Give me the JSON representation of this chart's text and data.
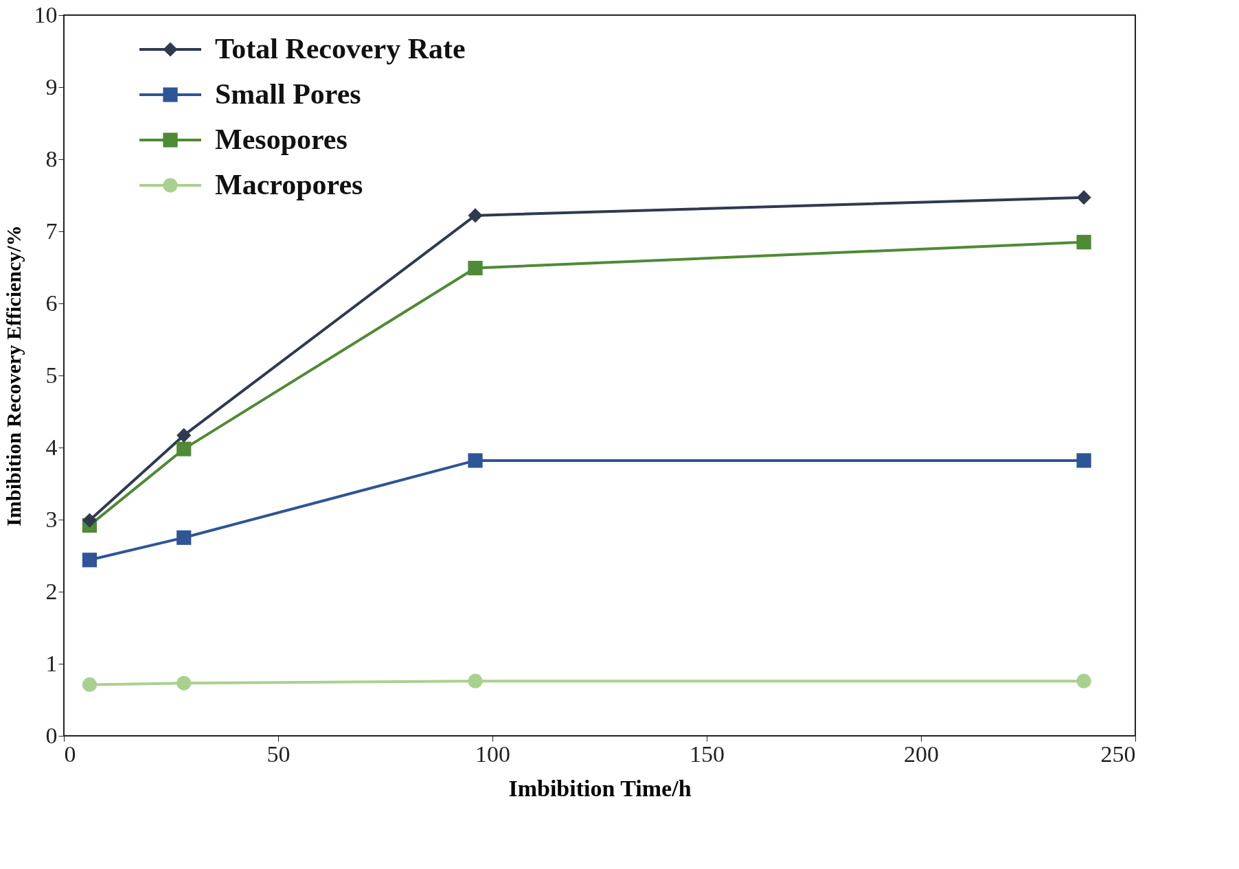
{
  "chart_data": {
    "type": "line",
    "xlabel": "Imbibition Time/h",
    "ylabel": "Imbibition Recovery Efficiency/%",
    "x": [
      6,
      28,
      96,
      238
    ],
    "series": [
      {
        "name": "Total Recovery Rate",
        "color": "#2f3a4f",
        "marker": "diamond",
        "values": [
          2.99,
          4.17,
          7.22,
          7.47
        ]
      },
      {
        "name": "Small Pores",
        "color": "#2e5597",
        "marker": "square",
        "values": [
          2.44,
          2.75,
          3.82,
          3.82
        ]
      },
      {
        "name": "Mesopores",
        "color": "#4f8a35",
        "marker": "square",
        "values": [
          2.92,
          3.98,
          6.49,
          6.85
        ]
      },
      {
        "name": "Macropores",
        "color": "#a9d18e",
        "marker": "circle",
        "values": [
          0.71,
          0.73,
          0.76,
          0.76
        ]
      }
    ],
    "xlim": [
      0,
      250
    ],
    "xticks": [
      0,
      50,
      100,
      150,
      200,
      250
    ],
    "ylim": [
      0,
      10
    ],
    "yticks": [
      0,
      1,
      2,
      3,
      4,
      5,
      6,
      7,
      8,
      9,
      10
    ],
    "grid": false,
    "legend": "top left",
    "line_style": "solid"
  }
}
